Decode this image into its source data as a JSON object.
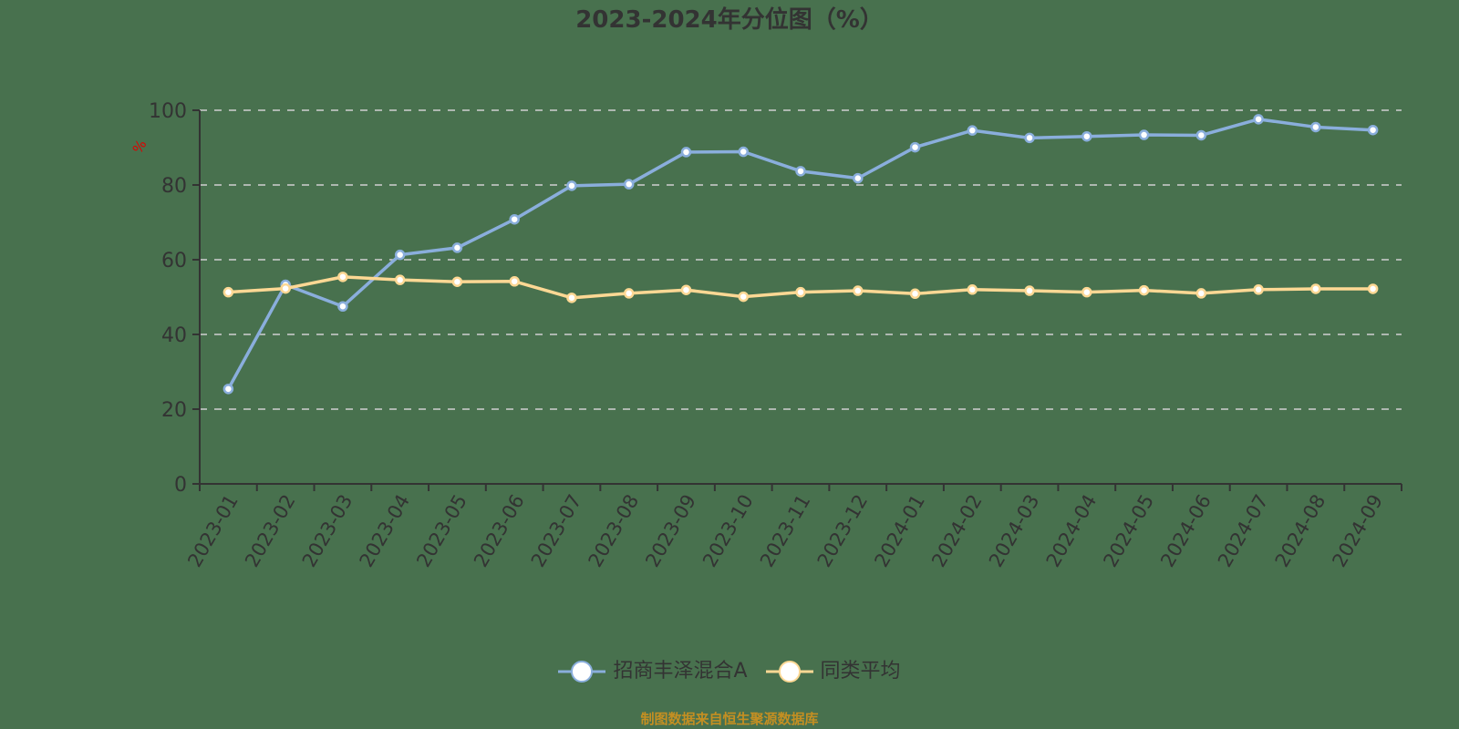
{
  "title": "2023-2024年分位图（%）",
  "y_unit": "%",
  "footer": "制图数据来自恒生聚源数据库",
  "legend": [
    {
      "label": "招商丰泽混合A",
      "color": "#8aaedc"
    },
    {
      "label": "同类平均",
      "color": "#fdd894"
    }
  ],
  "chart_data": {
    "type": "line",
    "title": "2023-2024年分位图（%）",
    "xlabel": "",
    "ylabel": "%",
    "ylim": [
      0,
      100
    ],
    "yticks": [
      0,
      20,
      40,
      60,
      80,
      100
    ],
    "grid": true,
    "legend_position": "bottom",
    "categories": [
      "2023-01",
      "2023-02",
      "2023-03",
      "2023-04",
      "2023-05",
      "2023-06",
      "2023-07",
      "2023-08",
      "2023-09",
      "2023-10",
      "2023-11",
      "2023-12",
      "2024-01",
      "2024-02",
      "2024-03",
      "2024-04",
      "2024-05",
      "2024-06",
      "2024-07",
      "2024-08",
      "2024-09"
    ],
    "series": [
      {
        "name": "招商丰泽混合A",
        "color": "#8aaedc",
        "values": [
          25.4,
          53.3,
          47.5,
          61.3,
          63.2,
          70.8,
          79.8,
          80.2,
          88.8,
          88.9,
          83.7,
          81.8,
          90.1,
          94.6,
          92.6,
          93.0,
          93.4,
          93.3,
          97.6,
          95.5,
          94.7
        ]
      },
      {
        "name": "同类平均",
        "color": "#fdd894",
        "values": [
          51.3,
          52.3,
          55.4,
          54.6,
          54.1,
          54.2,
          49.8,
          51.0,
          51.9,
          50.1,
          51.3,
          51.7,
          50.9,
          52.0,
          51.7,
          51.3,
          51.8,
          51.0,
          52.0,
          52.2,
          52.2
        ]
      }
    ]
  }
}
